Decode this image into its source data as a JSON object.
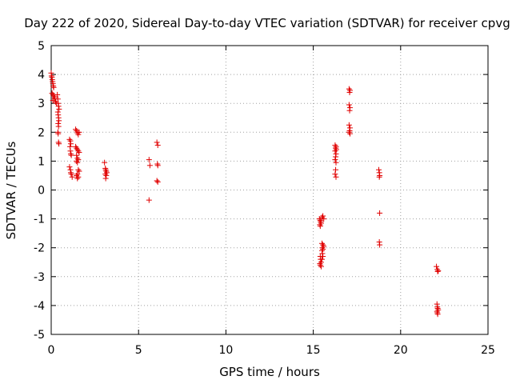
{
  "chart_data": {
    "type": "scatter",
    "title": "Day 222 of 2020, Sidereal Day-to-day VTEC variation (SDTVAR) for receiver cpvg",
    "xlabel": "GPS time / hours",
    "ylabel": "SDTVAR / TECUs",
    "xlim": [
      0,
      25
    ],
    "ylim": [
      -5,
      5
    ],
    "xticks": [
      0,
      5,
      10,
      15,
      20,
      25
    ],
    "yticks": [
      -5,
      -4,
      -3,
      -2,
      -1,
      0,
      1,
      2,
      3,
      4,
      5
    ],
    "xtick_labels": [
      "0",
      "5",
      "10",
      "15",
      "20",
      "25"
    ],
    "ytick_labels": [
      "-5",
      "-4",
      "-3",
      "-2",
      "-1",
      "0",
      "1",
      "2",
      "3",
      "4",
      "5"
    ],
    "grid": true,
    "marker": "plus",
    "color": "#e00000",
    "series": [
      {
        "name": "SDTVAR",
        "points": [
          [
            0.0,
            4.05
          ],
          [
            0.02,
            3.95
          ],
          [
            0.04,
            3.9
          ],
          [
            0.06,
            3.82
          ],
          [
            0.08,
            3.75
          ],
          [
            0.1,
            3.68
          ],
          [
            0.12,
            3.6
          ],
          [
            0.14,
            3.55
          ],
          [
            0.05,
            3.35
          ],
          [
            0.1,
            3.3
          ],
          [
            0.15,
            3.25
          ],
          [
            0.2,
            3.2
          ],
          [
            0.1,
            3.1
          ],
          [
            0.2,
            3.15
          ],
          [
            0.25,
            3.05
          ],
          [
            0.3,
            3.0
          ],
          [
            0.35,
            3.3
          ],
          [
            0.38,
            3.15
          ],
          [
            0.4,
            3.0
          ],
          [
            0.42,
            2.9
          ],
          [
            0.45,
            2.8
          ],
          [
            0.38,
            2.7
          ],
          [
            0.4,
            2.6
          ],
          [
            0.42,
            2.5
          ],
          [
            0.44,
            2.4
          ],
          [
            0.4,
            2.3
          ],
          [
            0.42,
            2.2
          ],
          [
            0.38,
            2.0
          ],
          [
            0.4,
            1.95
          ],
          [
            0.42,
            1.65
          ],
          [
            0.44,
            1.6
          ],
          [
            1.05,
            1.75
          ],
          [
            1.1,
            1.7
          ],
          [
            1.12,
            1.6
          ],
          [
            1.08,
            1.5
          ],
          [
            1.1,
            1.35
          ],
          [
            1.12,
            1.25
          ],
          [
            1.15,
            1.2
          ],
          [
            1.05,
            0.8
          ],
          [
            1.1,
            0.7
          ],
          [
            1.12,
            0.6
          ],
          [
            1.15,
            0.55
          ],
          [
            1.2,
            0.45
          ],
          [
            1.4,
            2.1
          ],
          [
            1.45,
            2.05
          ],
          [
            1.5,
            1.98
          ],
          [
            1.55,
            1.92
          ],
          [
            1.6,
            2.0
          ],
          [
            1.4,
            1.5
          ],
          [
            1.45,
            1.45
          ],
          [
            1.5,
            1.4
          ],
          [
            1.55,
            1.35
          ],
          [
            1.6,
            1.3
          ],
          [
            1.45,
            1.2
          ],
          [
            1.5,
            1.1
          ],
          [
            1.55,
            1.05
          ],
          [
            1.45,
            1.0
          ],
          [
            1.5,
            0.95
          ],
          [
            1.55,
            0.7
          ],
          [
            1.6,
            0.65
          ],
          [
            1.5,
            0.55
          ],
          [
            1.45,
            0.5
          ],
          [
            1.55,
            0.45
          ],
          [
            1.5,
            0.4
          ],
          [
            3.05,
            0.95
          ],
          [
            3.1,
            0.75
          ],
          [
            3.12,
            0.7
          ],
          [
            3.15,
            0.65
          ],
          [
            3.18,
            0.6
          ],
          [
            3.1,
            0.55
          ],
          [
            3.15,
            0.5
          ],
          [
            3.12,
            0.4
          ],
          [
            5.6,
            1.05
          ],
          [
            5.65,
            0.85
          ],
          [
            5.6,
            -0.35
          ],
          [
            6.05,
            1.65
          ],
          [
            6.1,
            1.55
          ],
          [
            6.08,
            0.9
          ],
          [
            6.1,
            0.85
          ],
          [
            6.05,
            0.32
          ],
          [
            6.1,
            0.28
          ],
          [
            15.35,
            -1.0
          ],
          [
            15.4,
            -1.05
          ],
          [
            15.42,
            -1.1
          ],
          [
            15.45,
            -1.15
          ],
          [
            15.38,
            -1.2
          ],
          [
            15.4,
            -1.25
          ],
          [
            15.5,
            -0.95
          ],
          [
            15.55,
            -0.9
          ],
          [
            15.6,
            -1.0
          ],
          [
            15.4,
            -2.3
          ],
          [
            15.42,
            -2.4
          ],
          [
            15.45,
            -2.5
          ],
          [
            15.38,
            -2.55
          ],
          [
            15.4,
            -2.6
          ],
          [
            15.45,
            -2.65
          ],
          [
            15.5,
            -1.85
          ],
          [
            15.55,
            -1.9
          ],
          [
            15.6,
            -1.95
          ],
          [
            15.52,
            -2.0
          ],
          [
            15.55,
            -2.05
          ],
          [
            15.5,
            -2.1
          ],
          [
            15.52,
            -2.2
          ],
          [
            15.55,
            -2.3
          ],
          [
            15.5,
            -2.4
          ],
          [
            16.25,
            1.55
          ],
          [
            16.3,
            1.5
          ],
          [
            16.28,
            1.45
          ],
          [
            16.32,
            1.4
          ],
          [
            16.25,
            1.35
          ],
          [
            16.3,
            1.25
          ],
          [
            16.28,
            1.15
          ],
          [
            16.25,
            1.05
          ],
          [
            16.3,
            0.95
          ],
          [
            16.28,
            0.7
          ],
          [
            16.25,
            0.55
          ],
          [
            16.3,
            0.45
          ],
          [
            17.05,
            3.5
          ],
          [
            17.1,
            3.45
          ],
          [
            17.08,
            3.38
          ],
          [
            17.05,
            2.95
          ],
          [
            17.1,
            2.85
          ],
          [
            17.08,
            2.75
          ],
          [
            17.05,
            2.25
          ],
          [
            17.1,
            2.15
          ],
          [
            17.08,
            2.05
          ],
          [
            17.05,
            2.0
          ],
          [
            17.1,
            1.95
          ],
          [
            18.75,
            0.7
          ],
          [
            18.78,
            0.6
          ],
          [
            18.8,
            0.5
          ],
          [
            18.78,
            0.45
          ],
          [
            18.8,
            -0.8
          ],
          [
            18.78,
            -1.8
          ],
          [
            18.8,
            -1.9
          ],
          [
            22.05,
            -2.65
          ],
          [
            22.1,
            -2.75
          ],
          [
            22.15,
            -2.8
          ],
          [
            22.12,
            -2.82
          ],
          [
            22.08,
            -3.95
          ],
          [
            22.1,
            -4.05
          ],
          [
            22.12,
            -4.1
          ],
          [
            22.15,
            -4.15
          ],
          [
            22.08,
            -4.2
          ],
          [
            22.1,
            -4.25
          ],
          [
            22.12,
            -4.3
          ]
        ]
      }
    ]
  }
}
